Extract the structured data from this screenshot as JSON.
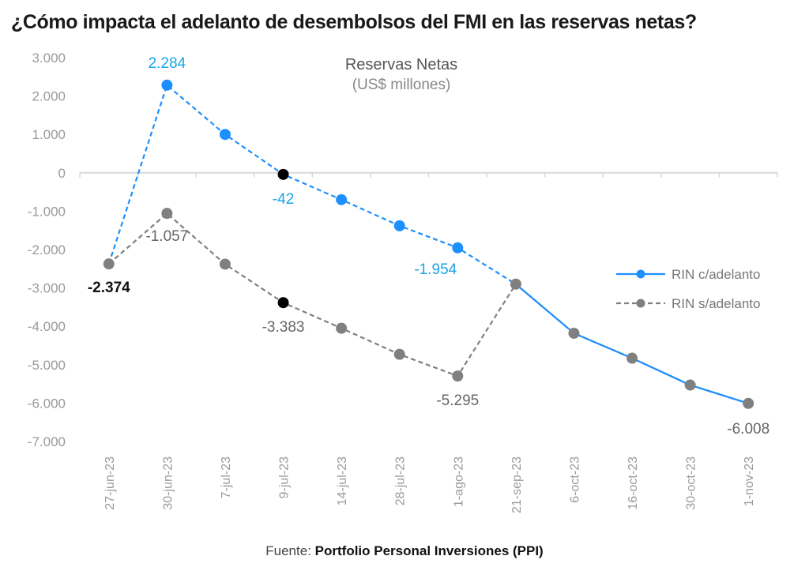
{
  "title": "¿Cómo impacta el adelanto de desembolsos del FMI en las reservas netas?",
  "source": {
    "label": "Fuente:",
    "value": "Portfolio Personal Inversiones (PPI)"
  },
  "colors": {
    "blue": "#1e8fff",
    "blue_label": "#1aa3e8",
    "gray": "#808080",
    "gray_label": "#666666",
    "highlight": "#000000",
    "axis": "#d9d9d9",
    "tick_label": "#9a9a9a"
  },
  "chart_data": {
    "type": "line",
    "title": "Reservas Netas",
    "subtitle": "(US$ millones)",
    "xlabel": "",
    "ylabel": "",
    "ylim": [
      -7000,
      3000
    ],
    "yticks": [
      3000,
      2000,
      1000,
      0,
      -1000,
      -2000,
      -3000,
      -4000,
      -5000,
      -6000,
      -7000
    ],
    "ytick_labels": [
      "3.000",
      "2.000",
      "1.000",
      "0",
      "-1.000",
      "-2.000",
      "-3.000",
      "-4.000",
      "-5.000",
      "-6.000",
      "-7.000"
    ],
    "grid": false,
    "legend": "right",
    "categories": [
      "27-jun-23",
      "30-jun-23",
      "7-jul-23",
      "9-jul-23",
      "14-jul-23",
      "28-jul-23",
      "1-ago-23",
      "21-sep-23",
      "6-oct-23",
      "16-oct-23",
      "30-oct-23",
      "1-nov-23"
    ],
    "series": [
      {
        "name": "RIN c/adelanto",
        "style": "dashed until 21-sep-23, solid after",
        "values": [
          -2374,
          2284,
          1000,
          -42,
          -700,
          -1380,
          -1954,
          -2900,
          -4180,
          -4830,
          -5530,
          -6008
        ]
      },
      {
        "name": "RIN s/adelanto",
        "style": "dashed",
        "values": [
          -2374,
          -1057,
          -2380,
          -3383,
          -4050,
          -4730,
          -5295,
          -2900,
          -4180,
          -4830,
          -5530,
          -6008
        ]
      }
    ],
    "annotations": [
      {
        "series": 0,
        "index": 0,
        "text": "-2.374",
        "color": "black",
        "bold": true
      },
      {
        "series": 0,
        "index": 1,
        "text": "2.284",
        "color": "blue"
      },
      {
        "series": 0,
        "index": 3,
        "text": "-42",
        "color": "blue"
      },
      {
        "series": 0,
        "index": 6,
        "text": "-1.954",
        "color": "blue"
      },
      {
        "series": 1,
        "index": 1,
        "text": "-1.057",
        "color": "gray"
      },
      {
        "series": 1,
        "index": 3,
        "text": "-3.383",
        "color": "gray"
      },
      {
        "series": 1,
        "index": 6,
        "text": "-5.295",
        "color": "gray"
      },
      {
        "series": 1,
        "index": 11,
        "text": "-6.008",
        "color": "gray"
      }
    ],
    "highlighted_points": [
      {
        "series": 0,
        "index": 3
      },
      {
        "series": 1,
        "index": 3
      }
    ]
  }
}
